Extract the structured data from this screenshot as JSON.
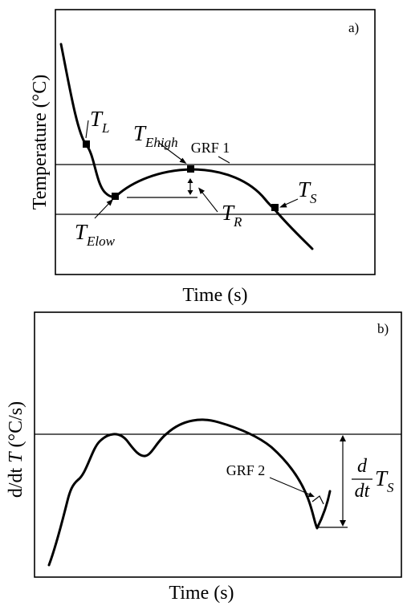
{
  "panel_a": {
    "panel_label": "a)",
    "y_axis_label": "Temperature (°C)",
    "x_axis_label": "Time (s)",
    "grf_label": "GRF 1",
    "points": {
      "liquidus": {
        "main": "T",
        "sub": "L"
      },
      "e_high": {
        "main": "T",
        "sub": "Ehigh"
      },
      "e_low": {
        "main": "T",
        "sub": "Elow"
      },
      "solidus": {
        "main": "T",
        "sub": "S"
      },
      "recalescence": {
        "main": "T",
        "sub": "R"
      }
    }
  },
  "panel_b": {
    "panel_label": "b)",
    "y_axis_label_prefix": "d/dt ",
    "y_axis_label_symbol": "T",
    "y_axis_label_suffix": " (°C/s)",
    "x_axis_label": "Time (s)",
    "grf_label": "GRF 2",
    "derivative_label": {
      "numerator": "d",
      "denominator": "dt",
      "symbol": "T",
      "sub": "S"
    }
  }
}
